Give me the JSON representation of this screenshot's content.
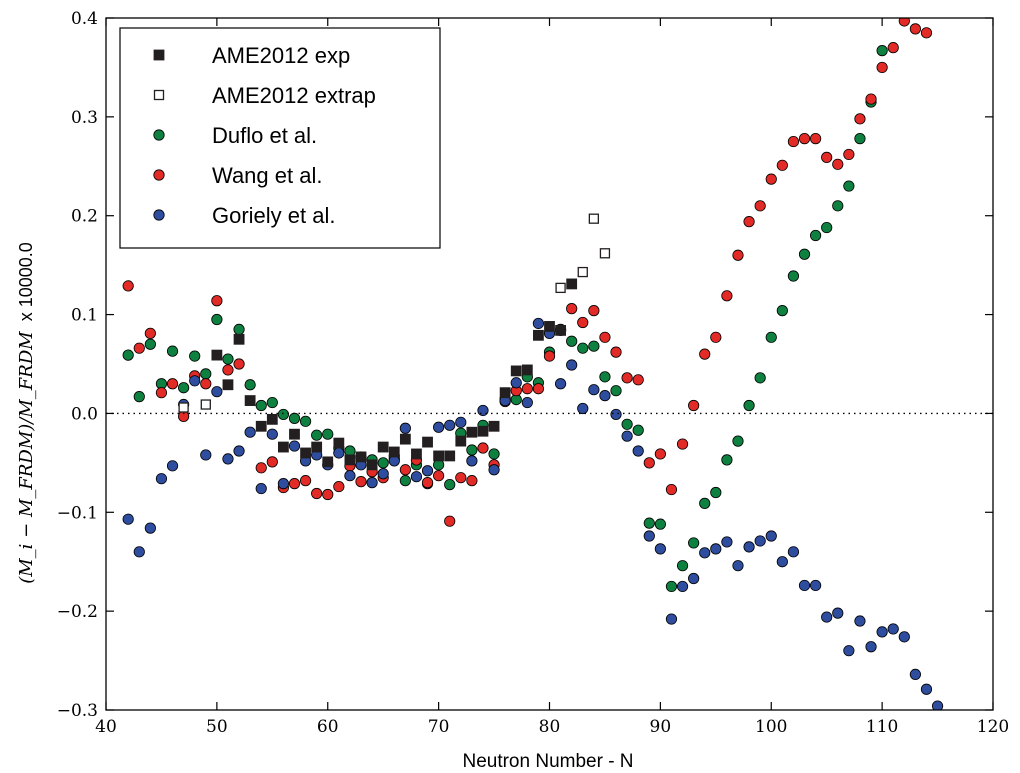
{
  "chart_data": {
    "type": "scatter",
    "xlabel": "Neutron Number - N",
    "ylabel_main": "(M_i − M_FRDM)/M_FRDM",
    "ylabel_suffix": "x 10000.0",
    "xlim": [
      40,
      120
    ],
    "ylim": [
      -0.3,
      0.4
    ],
    "x_ticks": [
      "40",
      "50",
      "60",
      "70",
      "80",
      "90",
      "100",
      "110",
      "120"
    ],
    "y_ticks": [
      "−0.3",
      "−0.2",
      "−0.1",
      "0.0",
      "0.1",
      "0.2",
      "0.3",
      "0.4"
    ],
    "reference_line": {
      "y": 0.0,
      "style": "dotted"
    },
    "grid": false,
    "legend_position": "top-left",
    "series": [
      {
        "name": "AME2012 exp",
        "marker": "square",
        "color": "#231f20",
        "fill": "#231f20",
        "points": [
          [
            50,
            0.059
          ],
          [
            51,
            0.029
          ],
          [
            52,
            0.075
          ],
          [
            53,
            0.013
          ],
          [
            54,
            -0.013
          ],
          [
            55,
            -0.006
          ],
          [
            56,
            -0.034
          ],
          [
            57,
            -0.021
          ],
          [
            58,
            -0.04
          ],
          [
            59,
            -0.034
          ],
          [
            60,
            -0.049
          ],
          [
            61,
            -0.03
          ],
          [
            62,
            -0.047
          ],
          [
            63,
            -0.044
          ],
          [
            64,
            -0.052
          ],
          [
            65,
            -0.034
          ],
          [
            66,
            -0.039
          ],
          [
            67,
            -0.026
          ],
          [
            68,
            -0.041
          ],
          [
            69,
            -0.029
          ],
          [
            70,
            -0.043
          ],
          [
            71,
            -0.043
          ],
          [
            72,
            -0.028
          ],
          [
            73,
            -0.019
          ],
          [
            74,
            -0.018
          ],
          [
            75,
            -0.013
          ],
          [
            76,
            0.021
          ],
          [
            77,
            0.043
          ],
          [
            78,
            0.044
          ],
          [
            79,
            0.079
          ],
          [
            80,
            0.088
          ],
          [
            81,
            0.084
          ],
          [
            82,
            0.131
          ]
        ]
      },
      {
        "name": "AME2012 extrap",
        "marker": "square-open",
        "color": "#231f20",
        "fill": "#ffffff",
        "points": [
          [
            47,
            0.006
          ],
          [
            49,
            0.009
          ],
          [
            81,
            0.127
          ],
          [
            83,
            0.143
          ],
          [
            84,
            0.197
          ],
          [
            85,
            0.162
          ]
        ]
      },
      {
        "name": "Duflo et al.",
        "marker": "circle",
        "color": "#0e8040",
        "fill": "#0e8040",
        "points": [
          [
            42,
            0.059
          ],
          [
            43,
            0.017
          ],
          [
            44,
            0.07
          ],
          [
            45,
            0.03
          ],
          [
            46,
            0.063
          ],
          [
            47,
            0.026
          ],
          [
            48,
            0.058
          ],
          [
            49,
            0.04
          ],
          [
            50,
            0.095
          ],
          [
            51,
            0.055
          ],
          [
            52,
            0.085
          ],
          [
            53,
            0.029
          ],
          [
            54,
            0.008
          ],
          [
            55,
            0.011
          ],
          [
            56,
            -0.001
          ],
          [
            57,
            -0.005
          ],
          [
            58,
            -0.008
          ],
          [
            59,
            -0.022
          ],
          [
            60,
            -0.021
          ],
          [
            61,
            -0.035
          ],
          [
            62,
            -0.038
          ],
          [
            63,
            -0.044
          ],
          [
            64,
            -0.047
          ],
          [
            65,
            -0.05
          ],
          [
            66,
            -0.046
          ],
          [
            67,
            -0.068
          ],
          [
            68,
            -0.052
          ],
          [
            69,
            -0.071
          ],
          [
            70,
            -0.052
          ],
          [
            71,
            -0.072
          ],
          [
            72,
            -0.02
          ],
          [
            73,
            -0.037
          ],
          [
            74,
            -0.012
          ],
          [
            75,
            -0.041
          ],
          [
            76,
            0.015
          ],
          [
            77,
            0.014
          ],
          [
            78,
            0.037
          ],
          [
            79,
            0.031
          ],
          [
            80,
            0.062
          ],
          [
            81,
            0.085
          ],
          [
            82,
            0.073
          ],
          [
            83,
            0.066
          ],
          [
            84,
            0.068
          ],
          [
            85,
            0.037
          ],
          [
            86,
            0.023
          ],
          [
            87,
            -0.011
          ],
          [
            88,
            -0.017
          ],
          [
            89,
            -0.111
          ],
          [
            90,
            -0.112
          ],
          [
            91,
            -0.175
          ],
          [
            92,
            -0.154
          ],
          [
            93,
            -0.131
          ],
          [
            94,
            -0.091
          ],
          [
            95,
            -0.08
          ],
          [
            96,
            -0.047
          ],
          [
            97,
            -0.028
          ],
          [
            98,
            0.008
          ],
          [
            99,
            0.036
          ],
          [
            100,
            0.077
          ],
          [
            101,
            0.104
          ],
          [
            102,
            0.139
          ],
          [
            103,
            0.161
          ],
          [
            104,
            0.18
          ],
          [
            105,
            0.188
          ],
          [
            106,
            0.21
          ],
          [
            107,
            0.23
          ],
          [
            108,
            0.278
          ],
          [
            109,
            0.315
          ],
          [
            110,
            0.367
          ]
        ]
      },
      {
        "name": "Wang et al.",
        "marker": "circle",
        "color": "#e22b26",
        "fill": "#e22b26",
        "points": [
          [
            42,
            0.129
          ],
          [
            43,
            0.066
          ],
          [
            44,
            0.081
          ],
          [
            45,
            0.021
          ],
          [
            46,
            0.03
          ],
          [
            47,
            -0.003
          ],
          [
            48,
            0.038
          ],
          [
            49,
            0.03
          ],
          [
            50,
            0.114
          ],
          [
            51,
            0.044
          ],
          [
            52,
            0.05
          ],
          [
            54,
            -0.055
          ],
          [
            55,
            -0.049
          ],
          [
            56,
            -0.075
          ],
          [
            57,
            -0.071
          ],
          [
            58,
            -0.068
          ],
          [
            59,
            -0.081
          ],
          [
            60,
            -0.082
          ],
          [
            61,
            -0.074
          ],
          [
            62,
            -0.053
          ],
          [
            63,
            -0.069
          ],
          [
            64,
            -0.059
          ],
          [
            65,
            -0.065
          ],
          [
            66,
            -0.043
          ],
          [
            67,
            -0.057
          ],
          [
            68,
            -0.047
          ],
          [
            69,
            -0.07
          ],
          [
            70,
            -0.063
          ],
          [
            71,
            -0.109
          ],
          [
            72,
            -0.065
          ],
          [
            73,
            -0.068
          ],
          [
            74,
            -0.035
          ],
          [
            75,
            -0.052
          ],
          [
            76,
            0.012
          ],
          [
            77,
            0.023
          ],
          [
            78,
            0.025
          ],
          [
            79,
            0.025
          ],
          [
            80,
            0.058
          ],
          [
            81,
            0.084
          ],
          [
            82,
            0.106
          ],
          [
            83,
            0.092
          ],
          [
            84,
            0.104
          ],
          [
            85,
            0.077
          ],
          [
            86,
            0.062
          ],
          [
            87,
            0.036
          ],
          [
            88,
            0.034
          ],
          [
            89,
            -0.05
          ],
          [
            90,
            -0.041
          ],
          [
            91,
            -0.077
          ],
          [
            92,
            -0.031
          ],
          [
            93,
            0.008
          ],
          [
            94,
            0.06
          ],
          [
            95,
            0.077
          ],
          [
            96,
            0.119
          ],
          [
            97,
            0.16
          ],
          [
            98,
            0.194
          ],
          [
            99,
            0.21
          ],
          [
            100,
            0.237
          ],
          [
            101,
            0.251
          ],
          [
            102,
            0.275
          ],
          [
            103,
            0.278
          ],
          [
            104,
            0.278
          ],
          [
            105,
            0.259
          ],
          [
            106,
            0.252
          ],
          [
            107,
            0.262
          ],
          [
            108,
            0.298
          ],
          [
            109,
            0.318
          ],
          [
            110,
            0.35
          ],
          [
            111,
            0.37
          ],
          [
            112,
            0.397
          ],
          [
            113,
            0.389
          ],
          [
            114,
            0.385
          ]
        ]
      },
      {
        "name": "Goriely et al.",
        "marker": "circle",
        "color": "#2f4d9e",
        "fill": "#2f4d9e",
        "points": [
          [
            42,
            -0.107
          ],
          [
            43,
            -0.14
          ],
          [
            44,
            -0.116
          ],
          [
            45,
            -0.066
          ],
          [
            46,
            -0.053
          ],
          [
            47,
            0.009
          ],
          [
            48,
            0.033
          ],
          [
            49,
            -0.042
          ],
          [
            50,
            0.022
          ],
          [
            51,
            -0.046
          ],
          [
            52,
            -0.038
          ],
          [
            53,
            -0.019
          ],
          [
            54,
            -0.076
          ],
          [
            55,
            -0.021
          ],
          [
            56,
            -0.071
          ],
          [
            57,
            -0.033
          ],
          [
            58,
            -0.048
          ],
          [
            59,
            -0.042
          ],
          [
            60,
            -0.052
          ],
          [
            61,
            -0.04
          ],
          [
            62,
            -0.063
          ],
          [
            63,
            -0.052
          ],
          [
            64,
            -0.07
          ],
          [
            65,
            -0.061
          ],
          [
            66,
            -0.048
          ],
          [
            67,
            -0.015
          ],
          [
            68,
            -0.064
          ],
          [
            69,
            -0.058
          ],
          [
            70,
            -0.014
          ],
          [
            71,
            -0.012
          ],
          [
            72,
            -0.009
          ],
          [
            73,
            -0.048
          ],
          [
            74,
            0.003
          ],
          [
            75,
            -0.057
          ],
          [
            76,
            0.013
          ],
          [
            77,
            0.031
          ],
          [
            78,
            0.011
          ],
          [
            79,
            0.091
          ],
          [
            80,
            0.081
          ],
          [
            81,
            0.03
          ],
          [
            82,
            0.049
          ],
          [
            83,
            0.005
          ],
          [
            84,
            0.024
          ],
          [
            85,
            0.018
          ],
          [
            86,
            -0.001
          ],
          [
            87,
            -0.023
          ],
          [
            88,
            -0.038
          ],
          [
            89,
            -0.124
          ],
          [
            90,
            -0.137
          ],
          [
            91,
            -0.208
          ],
          [
            92,
            -0.175
          ],
          [
            93,
            -0.167
          ],
          [
            94,
            -0.141
          ],
          [
            95,
            -0.137
          ],
          [
            96,
            -0.13
          ],
          [
            97,
            -0.154
          ],
          [
            98,
            -0.135
          ],
          [
            99,
            -0.129
          ],
          [
            100,
            -0.124
          ],
          [
            101,
            -0.15
          ],
          [
            102,
            -0.14
          ],
          [
            103,
            -0.174
          ],
          [
            104,
            -0.174
          ],
          [
            105,
            -0.206
          ],
          [
            106,
            -0.202
          ],
          [
            107,
            -0.24
          ],
          [
            108,
            -0.21
          ],
          [
            109,
            -0.236
          ],
          [
            110,
            -0.221
          ],
          [
            111,
            -0.218
          ],
          [
            112,
            -0.226
          ],
          [
            113,
            -0.264
          ],
          [
            114,
            -0.279
          ],
          [
            115,
            -0.296
          ]
        ]
      }
    ]
  }
}
